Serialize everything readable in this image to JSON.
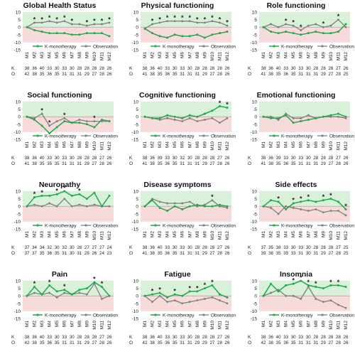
{
  "legend": {
    "k": "K-monotherapy",
    "o": "Observation"
  },
  "colors": {
    "k": "#22a84a",
    "o": "#7f7f7f",
    "green_band": "#d9f0d9",
    "red_band": "#f8dada",
    "axis_text": "#222222"
  },
  "y_ticks": [
    "10",
    "5",
    "0",
    "-5",
    "-10",
    "-15"
  ],
  "x_ticks": [
    "M1",
    "M2",
    "M3",
    "M4",
    "M5",
    "M6",
    "M7",
    "M8",
    "M9",
    "M10",
    "M11",
    "M12"
  ],
  "row_labels": {
    "k": "K",
    "o": "O"
  },
  "chart_data": [
    {
      "type": "line",
      "title": "Global Health Status",
      "ylim": [
        -15,
        10
      ],
      "categories": [
        "M1",
        "M2",
        "M3",
        "M4",
        "M5",
        "M6",
        "M7",
        "M8",
        "M9",
        "M10",
        "M11",
        "M12"
      ],
      "series": [
        {
          "name": "K-monotherapy",
          "values": [
            0,
            -2,
            -3,
            -4,
            -4,
            -4,
            -5,
            -5,
            -4,
            -4,
            -4,
            -6
          ]
        },
        {
          "name": "Observation",
          "values": [
            0,
            3,
            3,
            4,
            3,
            4,
            2,
            2,
            1,
            2,
            2,
            3
          ]
        }
      ],
      "significant": [
        1,
        2,
        3,
        4,
        5,
        6,
        8,
        9,
        10,
        11
      ],
      "n_k": [
        "38",
        "36",
        "40",
        "33",
        "30",
        "33",
        "30",
        "28",
        "28",
        "28",
        "28",
        "26"
      ],
      "n_o": [
        "42",
        "38",
        "35",
        "36",
        "35",
        "31",
        "31",
        "31",
        "29",
        "27",
        "28",
        "26"
      ]
    },
    {
      "type": "line",
      "title": "Physical functioning",
      "ylim": [
        -15,
        10
      ],
      "categories": [
        "M1",
        "M2",
        "M3",
        "M4",
        "M5",
        "M6",
        "M7",
        "M8",
        "M9",
        "M10",
        "M11",
        "M12"
      ],
      "series": [
        {
          "name": "K-monotherapy",
          "values": [
            -1,
            -4,
            -6,
            -7,
            -5,
            -6,
            -6,
            -5,
            -7,
            -5,
            -4,
            -3
          ]
        },
        {
          "name": "Observation",
          "values": [
            -1,
            2,
            3,
            4,
            4,
            4,
            4,
            3,
            3,
            4,
            3,
            1
          ]
        }
      ],
      "significant": [
        1,
        2,
        3,
        4,
        5,
        6,
        7,
        8,
        9,
        10,
        11
      ],
      "n_k": [
        "38",
        "36",
        "40",
        "33",
        "30",
        "33",
        "30",
        "28",
        "28",
        "28",
        "28",
        "26"
      ],
      "n_o": [
        "41",
        "38",
        "35",
        "36",
        "35",
        "31",
        "31",
        "31",
        "29",
        "27",
        "28",
        "26"
      ]
    },
    {
      "type": "line",
      "title": "Role functioning",
      "ylim": [
        -15,
        10
      ],
      "categories": [
        "M1",
        "M2",
        "M3",
        "M4",
        "M5",
        "M6",
        "M7",
        "M8",
        "M9",
        "M10",
        "M11",
        "M12"
      ],
      "series": [
        {
          "name": "K-monotherapy",
          "values": [
            0,
            -3,
            -4,
            -3,
            -4,
            -5,
            -4,
            -3,
            -4,
            -4,
            -3,
            2
          ]
        },
        {
          "name": "Observation",
          "values": [
            0,
            2,
            0,
            2,
            1,
            -2,
            1,
            2,
            0,
            1,
            5,
            0
          ]
        }
      ],
      "significant": [
        3,
        4,
        5,
        8,
        10
      ],
      "n_k": [
        "38",
        "36",
        "40",
        "33",
        "30",
        "33",
        "30",
        "28",
        "28",
        "28",
        "27",
        "26"
      ],
      "n_o": [
        "41",
        "38",
        "35",
        "36",
        "35",
        "31",
        "31",
        "31",
        "29",
        "27",
        "28",
        "25"
      ]
    },
    {
      "type": "line",
      "title": "Social functioning",
      "ylim": [
        -15,
        10
      ],
      "categories": [
        "M1",
        "M2",
        "M3",
        "M4",
        "M5",
        "M6",
        "M7",
        "M8",
        "M9",
        "M10",
        "M11",
        "M12"
      ],
      "series": [
        {
          "name": "K-monotherapy",
          "values": [
            0,
            -2,
            -6,
            -11,
            -7,
            -3,
            -4,
            -4,
            -5,
            -7,
            -2,
            -3
          ]
        },
        {
          "name": "Observation",
          "values": [
            0,
            -1,
            2,
            -6,
            -3,
            -1,
            -4,
            -2,
            -3,
            -3,
            -3,
            -3
          ]
        }
      ],
      "significant": [
        2,
        3,
        5,
        9
      ],
      "n_k": [
        "38",
        "36",
        "40",
        "33",
        "30",
        "33",
        "30",
        "28",
        "28",
        "28",
        "27",
        "26"
      ],
      "n_o": [
        "41",
        "38",
        "35",
        "35",
        "35",
        "31",
        "31",
        "31",
        "29",
        "27",
        "28",
        "26"
      ]
    },
    {
      "type": "line",
      "title": "Cognitive functioning",
      "ylim": [
        -15,
        10
      ],
      "categories": [
        "M1",
        "M2",
        "M3",
        "M4",
        "M5",
        "M6",
        "M7",
        "M8",
        "M9",
        "M10",
        "M11",
        "M12"
      ],
      "series": [
        {
          "name": "K-monotherapy",
          "values": [
            0,
            -1,
            -1,
            1,
            0,
            -1,
            1,
            0,
            2,
            4,
            7,
            6
          ]
        },
        {
          "name": "Observation",
          "values": [
            0,
            -1,
            -2,
            -1,
            -2,
            -3,
            -1,
            -3,
            -2,
            -1,
            -4,
            -1
          ]
        }
      ],
      "significant": [
        10,
        11
      ],
      "n_k": [
        "38",
        "36",
        "39",
        "33",
        "30",
        "32",
        "30",
        "28",
        "28",
        "28",
        "27",
        "26"
      ],
      "n_o": [
        "41",
        "38",
        "35",
        "36",
        "35",
        "31",
        "31",
        "31",
        "29",
        "27",
        "28",
        "26"
      ]
    },
    {
      "type": "line",
      "title": "Emotional functioning",
      "ylim": [
        -15,
        10
      ],
      "categories": [
        "M1",
        "M2",
        "M3",
        "M4",
        "M5",
        "M6",
        "M7",
        "M8",
        "M9",
        "M10",
        "M11",
        "M12"
      ],
      "series": [
        {
          "name": "K-monotherapy",
          "values": [
            0,
            -1,
            -1,
            1,
            -4,
            -3,
            -2,
            -1,
            0,
            1,
            2,
            0
          ]
        },
        {
          "name": "Observation",
          "values": [
            0,
            0,
            -2,
            2,
            -1,
            -1,
            1,
            -1,
            0,
            0,
            0,
            -1
          ]
        }
      ],
      "significant": [],
      "n_k": [
        "38",
        "36",
        "39",
        "33",
        "30",
        "33",
        "30",
        "28",
        "28",
        "28",
        "27",
        "26"
      ],
      "n_o": [
        "41",
        "38",
        "35",
        "36",
        "35",
        "31",
        "31",
        "31",
        "29",
        "27",
        "28",
        "26"
      ]
    },
    {
      "type": "line",
      "title": "Neuropathy",
      "ylim": [
        -15,
        10
      ],
      "categories": [
        "M1",
        "M2",
        "M3",
        "M4",
        "M5",
        "M6",
        "M7",
        "M8",
        "M9",
        "M10",
        "M11",
        "M12"
      ],
      "series": [
        {
          "name": "K-monotherapy",
          "values": [
            0,
            6,
            7,
            7,
            8,
            10,
            7,
            8,
            5,
            9,
            0,
            7
          ]
        },
        {
          "name": "Observation",
          "values": [
            0,
            1,
            0,
            2,
            0,
            5,
            0,
            1,
            0,
            1,
            0,
            0
          ]
        }
      ],
      "significant": [
        1,
        2,
        4,
        5,
        7
      ],
      "n_k": [
        "37",
        "34",
        "34",
        "32",
        "30",
        "32",
        "30",
        "28",
        "27",
        "27",
        "27",
        "24"
      ],
      "n_o": [
        "37",
        "37",
        "35",
        "36",
        "35",
        "31",
        "30",
        "31",
        "28",
        "26",
        "24",
        "23"
      ]
    },
    {
      "type": "line",
      "title": "Disease symptoms",
      "ylim": [
        -15,
        10
      ],
      "categories": [
        "M1",
        "M2",
        "M3",
        "M4",
        "M5",
        "M6",
        "M7",
        "M8",
        "M9",
        "M10",
        "M11",
        "M12"
      ],
      "series": [
        {
          "name": "K-monotherapy",
          "values": [
            0,
            4,
            -1,
            -3,
            0,
            -2,
            0,
            1,
            0,
            0,
            1,
            0
          ]
        },
        {
          "name": "Observation",
          "values": [
            0,
            5,
            3,
            2,
            2,
            2,
            3,
            0,
            1,
            4,
            0,
            -1
          ]
        }
      ],
      "significant": [
        9
      ],
      "n_k": [
        "38",
        "36",
        "40",
        "33",
        "30",
        "33",
        "30",
        "28",
        "28",
        "28",
        "27",
        "26"
      ],
      "n_o": [
        "41",
        "38",
        "35",
        "36",
        "35",
        "31",
        "31",
        "31",
        "29",
        "27",
        "28",
        "26"
      ]
    },
    {
      "type": "line",
      "title": "Side effects",
      "ylim": [
        -15,
        10
      ],
      "categories": [
        "M1",
        "M2",
        "M3",
        "M4",
        "M5",
        "M6",
        "M7",
        "M8",
        "M9",
        "M10",
        "M11",
        "M12"
      ],
      "series": [
        {
          "name": "K-monotherapy",
          "values": [
            0,
            4,
            3,
            -2,
            2,
            3,
            4,
            3,
            4,
            5,
            3,
            -2
          ]
        },
        {
          "name": "Observation",
          "values": [
            0,
            -1,
            -5,
            0,
            -1,
            -2,
            -3,
            -2,
            -4,
            -3,
            -3,
            -6
          ]
        }
      ],
      "significant": [
        2,
        4,
        5,
        6,
        8,
        9,
        11
      ],
      "n_k": [
        "37",
        "35",
        "38",
        "33",
        "30",
        "33",
        "30",
        "28",
        "28",
        "28",
        "27",
        "25"
      ],
      "n_o": [
        "39",
        "38",
        "35",
        "35",
        "33",
        "31",
        "30",
        "31",
        "29",
        "27",
        "28",
        "25"
      ]
    },
    {
      "type": "line",
      "title": "Pain",
      "ylim": [
        -15,
        10
      ],
      "categories": [
        "M1",
        "M2",
        "M3",
        "M4",
        "M5",
        "M6",
        "M7",
        "M8",
        "M9",
        "M10",
        "M11",
        "M12"
      ],
      "series": [
        {
          "name": "K-monotherapy",
          "values": [
            0,
            6,
            1,
            7,
            3,
            4,
            1,
            4,
            5,
            9,
            6,
            0
          ]
        },
        {
          "name": "Observation",
          "values": [
            0,
            2,
            1,
            2,
            -1,
            2,
            1,
            2,
            1,
            8,
            -2,
            0
          ]
        }
      ],
      "significant": [
        1,
        3,
        5,
        9,
        10
      ],
      "n_k": [
        "38",
        "36",
        "40",
        "33",
        "30",
        "33",
        "30",
        "28",
        "28",
        "28",
        "27",
        "26"
      ],
      "n_o": [
        "42",
        "38",
        "35",
        "36",
        "35",
        "31",
        "31",
        "31",
        "29",
        "27",
        "28",
        "26"
      ]
    },
    {
      "type": "line",
      "title": "Fatigue",
      "ylim": [
        -15,
        10
      ],
      "categories": [
        "M1",
        "M2",
        "M3",
        "M4",
        "M5",
        "M6",
        "M7",
        "M8",
        "M9",
        "M10",
        "M11",
        "M12"
      ],
      "series": [
        {
          "name": "K-monotherapy",
          "values": [
            0,
            1,
            2,
            -1,
            1,
            0,
            3,
            3,
            5,
            7,
            1,
            -1
          ]
        },
        {
          "name": "Observation",
          "values": [
            0,
            -4,
            0,
            -4,
            -3,
            -5,
            -4,
            -3,
            -2,
            -1,
            -3,
            -5
          ]
        }
      ],
      "significant": [
        1,
        2,
        4,
        6,
        7,
        8,
        9
      ],
      "n_k": [
        "38",
        "36",
        "40",
        "33",
        "30",
        "33",
        "30",
        "28",
        "28",
        "28",
        "27",
        "26"
      ],
      "n_o": [
        "42",
        "38",
        "35",
        "36",
        "35",
        "31",
        "31",
        "29",
        "29",
        "27",
        "28",
        "26"
      ]
    },
    {
      "type": "line",
      "title": "Insomnia",
      "ylim": [
        -15,
        10
      ],
      "categories": [
        "M1",
        "M2",
        "M3",
        "M4",
        "M5",
        "M6",
        "M7",
        "M8",
        "M9",
        "M10",
        "M11",
        "M12"
      ],
      "series": [
        {
          "name": "K-monotherapy",
          "values": [
            0,
            8,
            3,
            7,
            8,
            10,
            7,
            6,
            5,
            7,
            7,
            6
          ]
        },
        {
          "name": "Observation",
          "values": [
            0,
            2,
            4,
            0,
            0,
            -2,
            6,
            -2,
            -4,
            -3,
            -6,
            -8
          ]
        }
      ],
      "significant": [
        4,
        5,
        6,
        7,
        9,
        10
      ],
      "n_k": [
        "38",
        "36",
        "40",
        "33",
        "30",
        "33",
        "30",
        "28",
        "28",
        "28",
        "28",
        "26"
      ],
      "n_o": [
        "42",
        "38",
        "35",
        "36",
        "35",
        "31",
        "31",
        "31",
        "29",
        "27",
        "28",
        "26"
      ]
    }
  ]
}
